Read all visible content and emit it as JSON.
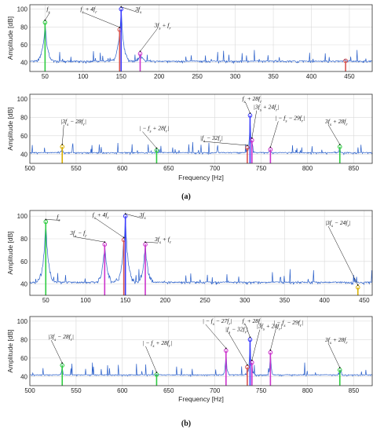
{
  "chart_data": [
    {
      "type": "line",
      "panel": "a-top",
      "title": "",
      "xlabel": "",
      "ylabel": "Amplitude [dB]",
      "xlim": [
        30,
        480
      ],
      "ylim": [
        30,
        105
      ],
      "xticks": [
        50,
        100,
        150,
        200,
        250,
        300,
        350,
        400,
        450
      ],
      "yticks": [
        40,
        60,
        80,
        100
      ],
      "grid": true,
      "peaks": [
        {
          "x": 50,
          "y": 85,
          "color": "#2ecc40"
        },
        {
          "x": 148,
          "y": 77,
          "color": "#d9534f"
        },
        {
          "x": 150,
          "y": 100,
          "color": "#3b3bff"
        },
        {
          "x": 175,
          "y": 50,
          "color": "#cc33cc"
        },
        {
          "x": 445,
          "y": 42,
          "color": "#d9534f"
        }
      ],
      "annotations": [
        {
          "text": "f_s",
          "x": 50,
          "y": 85
        },
        {
          "text": "f_s + 4f_r",
          "x": 148,
          "y": 77
        },
        {
          "text": "3f_s",
          "x": 150,
          "y": 100
        },
        {
          "text": "3f_s + f_r",
          "x": 175,
          "y": 50
        }
      ]
    },
    {
      "type": "line",
      "panel": "a-bottom",
      "title": "",
      "xlabel": "Frequency [Hz]",
      "ylabel": "Amplitude [dB]",
      "xlim": [
        500,
        870
      ],
      "ylim": [
        30,
        105
      ],
      "xticks": [
        500,
        550,
        600,
        650,
        700,
        750,
        800,
        850
      ],
      "yticks": [
        40,
        60,
        80,
        100
      ],
      "grid": true,
      "peaks": [
        {
          "x": 535,
          "y": 48,
          "color": "#d9b000"
        },
        {
          "x": 637,
          "y": 44,
          "color": "#2ecc40"
        },
        {
          "x": 735,
          "y": 47,
          "color": "#d9534f"
        },
        {
          "x": 738,
          "y": 82,
          "color": "#3b3bff"
        },
        {
          "x": 740,
          "y": 55,
          "color": "#cc33cc"
        },
        {
          "x": 760,
          "y": 45,
          "color": "#cc33cc"
        },
        {
          "x": 835,
          "y": 48,
          "color": "#2ecc40"
        }
      ],
      "annotations": [
        {
          "text": "|3f_s − 28f_r|",
          "x": 535,
          "y": 48
        },
        {
          "text": "| − f_s + 28f_r|",
          "x": 637,
          "y": 44
        },
        {
          "text": "|f_s − 32f_r|",
          "x": 735,
          "y": 47
        },
        {
          "text": "f_s + 28f_r",
          "x": 738,
          "y": 82
        },
        {
          "text": "|3f_s + 24f_r|",
          "x": 740,
          "y": 55
        },
        {
          "text": "| − f_s − 29f_r|",
          "x": 760,
          "y": 45
        },
        {
          "text": "3f_s + 28f_r",
          "x": 835,
          "y": 48
        }
      ]
    },
    {
      "type": "line",
      "panel": "b-top",
      "title": "",
      "xlabel": "",
      "ylabel": "Amplitude [dB]",
      "xlim": [
        30,
        460
      ],
      "ylim": [
        30,
        105
      ],
      "xticks": [
        50,
        100,
        150,
        200,
        250,
        300,
        350,
        400,
        450
      ],
      "yticks": [
        40,
        60,
        80,
        100
      ],
      "grid": true,
      "peaks": [
        {
          "x": 50,
          "y": 95,
          "color": "#2ecc40"
        },
        {
          "x": 124,
          "y": 75,
          "color": "#cc33cc"
        },
        {
          "x": 148,
          "y": 79,
          "color": "#d9534f"
        },
        {
          "x": 150,
          "y": 100,
          "color": "#3b3bff"
        },
        {
          "x": 175,
          "y": 75,
          "color": "#cc33cc"
        },
        {
          "x": 442,
          "y": 37,
          "color": "#d9b000"
        }
      ],
      "annotations": [
        {
          "text": "f_s",
          "x": 50,
          "y": 95
        },
        {
          "text": "f_s + 4f_r",
          "x": 148,
          "y": 79
        },
        {
          "text": "3f_s",
          "x": 150,
          "y": 100
        },
        {
          "text": "3f_s − f_r",
          "x": 124,
          "y": 75
        },
        {
          "text": "3f_s + f_r",
          "x": 175,
          "y": 75
        },
        {
          "text": "|3f_s − 24f_r|",
          "x": 442,
          "y": 37
        }
      ]
    },
    {
      "type": "line",
      "panel": "b-bottom",
      "title": "",
      "xlabel": "Frequency [Hz]",
      "ylabel": "Amplitude [dB]",
      "xlim": [
        500,
        870
      ],
      "ylim": [
        30,
        105
      ],
      "xticks": [
        500,
        550,
        600,
        650,
        700,
        750,
        800,
        850
      ],
      "yticks": [
        40,
        60,
        80,
        100
      ],
      "grid": true,
      "peaks": [
        {
          "x": 535,
          "y": 52,
          "color": "#2ecc40"
        },
        {
          "x": 637,
          "y": 42,
          "color": "#2ecc40"
        },
        {
          "x": 712,
          "y": 68,
          "color": "#cc33cc"
        },
        {
          "x": 735,
          "y": 50,
          "color": "#d9534f"
        },
        {
          "x": 738,
          "y": 80,
          "color": "#3b3bff"
        },
        {
          "x": 740,
          "y": 55,
          "color": "#cc33cc"
        },
        {
          "x": 760,
          "y": 66,
          "color": "#cc33cc"
        },
        {
          "x": 835,
          "y": 47,
          "color": "#2ecc40"
        }
      ],
      "annotations": [
        {
          "text": "|3f_s − 28f_r|",
          "x": 535,
          "y": 52
        },
        {
          "text": "| − f_s + 28f_r|",
          "x": 637,
          "y": 42
        },
        {
          "text": "|f_s − 32f_r|",
          "x": 735,
          "y": 50
        },
        {
          "text": "| − f_s − 27f_r|",
          "x": 712,
          "y": 68
        },
        {
          "text": "f_s + 28f_r",
          "x": 738,
          "y": 80
        },
        {
          "text": "|3f_s + 24f_r|",
          "x": 740,
          "y": 55
        },
        {
          "text": "| − f_s − 29f_r|",
          "x": 760,
          "y": 66
        },
        {
          "text": "3f_s + 28f_r",
          "x": 835,
          "y": 47
        }
      ]
    }
  ],
  "captions": {
    "a": "(a)",
    "b": "(b)"
  },
  "colors": {
    "spectrum": "#2a5fc9",
    "grid": "#d9d9d9"
  }
}
